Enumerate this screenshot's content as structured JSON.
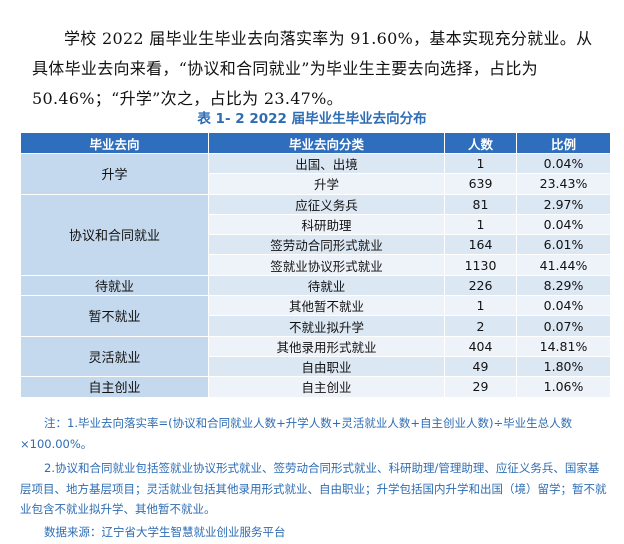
{
  "intro": {
    "text": "学校 2022 届毕业生毕业去向落实率为 91.60%，基本实现充分就业。从具体毕业去向来看，“协议和合同就业”为毕业生主要去向选择，占比为 50.46%；“升学”次之，占比为 23.47%。"
  },
  "table": {
    "caption": "表 1- 2    2022 届毕业生毕业去向分布",
    "headers": [
      "毕业去向",
      "毕业去向分类",
      "人数",
      "比例"
    ],
    "groups": [
      {
        "name": "升学",
        "rows": [
          {
            "category": "出国、出境",
            "count": "1",
            "ratio": "0.04%"
          },
          {
            "category": "升学",
            "count": "639",
            "ratio": "23.43%"
          }
        ]
      },
      {
        "name": "协议和合同就业",
        "rows": [
          {
            "category": "应征义务兵",
            "count": "81",
            "ratio": "2.97%"
          },
          {
            "category": "科研助理",
            "count": "1",
            "ratio": "0.04%"
          },
          {
            "category": "签劳动合同形式就业",
            "count": "164",
            "ratio": "6.01%"
          },
          {
            "category": "签就业协议形式就业",
            "count": "1130",
            "ratio": "41.44%"
          }
        ]
      },
      {
        "name": "待就业",
        "rows": [
          {
            "category": "待就业",
            "count": "226",
            "ratio": "8.29%"
          }
        ]
      },
      {
        "name": "暂不就业",
        "rows": [
          {
            "category": "其他暂不就业",
            "count": "1",
            "ratio": "0.04%"
          },
          {
            "category": "不就业拟升学",
            "count": "2",
            "ratio": "0.07%"
          }
        ]
      },
      {
        "name": "灵活就业",
        "rows": [
          {
            "category": "其他录用形式就业",
            "count": "404",
            "ratio": "14.81%"
          },
          {
            "category": "自由职业",
            "count": "49",
            "ratio": "1.80%"
          }
        ]
      },
      {
        "name": "自主创业",
        "rows": [
          {
            "category": "自主创业",
            "count": "29",
            "ratio": "1.06%"
          }
        ]
      }
    ]
  },
  "notes": {
    "note1": "注：1.毕业去向落实率=(协议和合同就业人数+升学人数+灵活就业人数+自主创业人数)÷毕业生总人数×100.00%。",
    "note2": "2.协议和合同就业包括签就业协议形式就业、签劳动合同形式就业、科研助理/管理助理、应征义务兵、国家基层项目、地方基层项目；灵活就业包括其他录用形式就业、自由职业；升学包括国内升学和出国（境）留学；暂不就业包含不就业拟升学、其他暂不就业。",
    "source": "数据来源：辽宁省大学生智慧就业创业服务平台"
  }
}
